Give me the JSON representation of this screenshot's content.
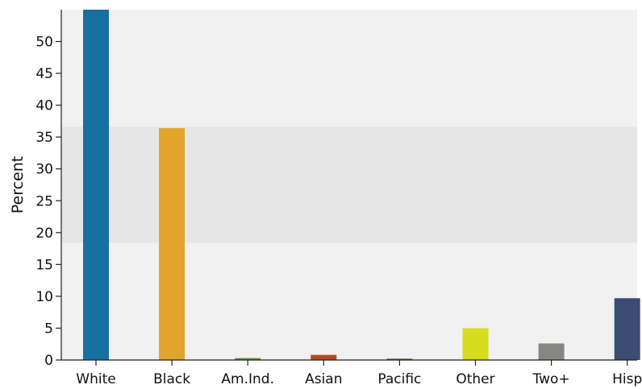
{
  "chart_data": {
    "type": "bar",
    "title": "",
    "xlabel": "",
    "ylabel": "Percent",
    "categories": [
      "White",
      "Black",
      "Am.Ind.",
      "Asian",
      "Pacific",
      "Other",
      "Two+",
      "Hisp"
    ],
    "values": [
      55,
      36.4,
      0.3,
      0.8,
      0.2,
      5.0,
      2.6,
      9.7
    ],
    "ylim": [
      0,
      55
    ],
    "yticks": [
      0,
      5,
      10,
      15,
      20,
      25,
      30,
      35,
      40,
      45,
      50
    ],
    "bar_colors": [
      "#1670a0",
      "#e0a52a",
      "#4e9a2a",
      "#b24a20",
      "#2e6b1e",
      "#d8dc1e",
      "#868682",
      "#3b4c72"
    ],
    "bands": [
      {
        "from": 0,
        "to": 18.4,
        "color": "#f1f1f1"
      },
      {
        "from": 18.4,
        "to": 36.6,
        "color": "#e6e6e6"
      },
      {
        "from": 36.6,
        "to": 55,
        "color": "#f1f1f1"
      }
    ],
    "grid": false,
    "legend": "none"
  }
}
